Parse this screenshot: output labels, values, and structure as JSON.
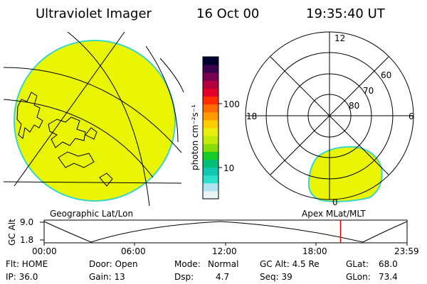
{
  "header": {
    "instrument": "Ultraviolet Imager",
    "date": "16 Oct 00",
    "time": "19:35:40 UT"
  },
  "colorbar": {
    "unit_label": "photon cm⁻²s⁻¹",
    "tick_labels": [
      "100",
      "10"
    ],
    "colors": [
      "#e8f4f4",
      "#b0e4ee",
      "#2ce0cc",
      "#10c8b0",
      "#00c078",
      "#18cc28",
      "#88dc0c",
      "#c4ea0a",
      "#e8ee10",
      "#ffcc00",
      "#ff9a00",
      "#ff6a00",
      "#ff2c00",
      "#e40028",
      "#b40040",
      "#7a0050",
      "#3c0050",
      "#000030"
    ]
  },
  "left_map": {
    "caption": "Geographic Lat/Lon",
    "fill_color": "#eaf504"
  },
  "right_map": {
    "caption": "Apex MLat/MLT",
    "mlt_labels": [
      "12",
      "18",
      "6",
      "0"
    ],
    "lat_labels": [
      "60",
      "70",
      "80"
    ],
    "fill_color": "#eaf504"
  },
  "timeline": {
    "ylabel": "GC Alt",
    "y_ticks": [
      "9.0",
      "1.8"
    ],
    "x_ticks": [
      "00:00",
      "06:00",
      "12:00",
      "18:00",
      "23:59"
    ],
    "marker_time_hours": 19.6
  },
  "status": {
    "row1": {
      "flt": "Flt: HOME",
      "door": "Door: Open",
      "mode_label": "Mode:",
      "mode_value": "Normal",
      "gc_alt": "GC Alt: 4.5 Re",
      "glat_label": "GLat:",
      "glat_value": "68.0"
    },
    "row2": {
      "ip": "IP: 36.0",
      "gain": "Gain: 13",
      "dsp_label": "Dsp:",
      "dsp_value": "4.7",
      "seq": "Seq: 39",
      "glon_label": "GLon:",
      "glon_value": "73.4"
    }
  }
}
